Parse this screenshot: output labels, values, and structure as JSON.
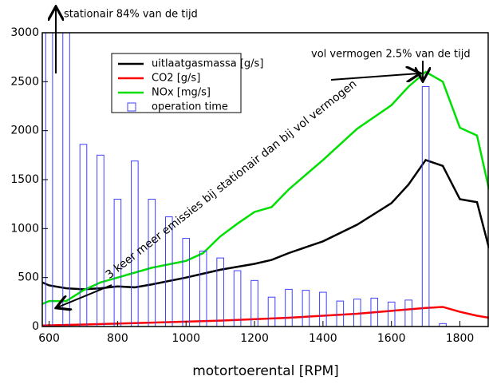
{
  "chart_data": {
    "type": "line",
    "xlabel": "motortoerental [RPM]",
    "xlim": [
      580,
      1885
    ],
    "ylim": [
      0,
      3000
    ],
    "xticks": [
      600,
      800,
      1000,
      1200,
      1400,
      1600,
      1800
    ],
    "yticks": [
      0,
      500,
      1000,
      1500,
      2000,
      2500,
      3000
    ],
    "legend": "upper left",
    "series": [
      {
        "name": "uitlaatgasmassa [g/s]",
        "type": "line",
        "color": "#000000",
        "x": [
          580,
          600,
          650,
          700,
          750,
          800,
          850,
          900,
          1000,
          1100,
          1200,
          1250,
          1300,
          1400,
          1500,
          1600,
          1650,
          1700,
          1750,
          1800,
          1850,
          1885
        ],
        "values": [
          450,
          420,
          390,
          380,
          390,
          410,
          400,
          430,
          500,
          580,
          640,
          680,
          750,
          870,
          1040,
          1260,
          1450,
          1700,
          1640,
          1300,
          1270,
          800
        ]
      },
      {
        "name": "CO2 [g/s]",
        "type": "line",
        "color": "#ff0000",
        "x": [
          580,
          700,
          900,
          1100,
          1300,
          1500,
          1600,
          1700,
          1750,
          1800,
          1850,
          1885
        ],
        "values": [
          10,
          20,
          40,
          60,
          90,
          130,
          160,
          190,
          200,
          150,
          110,
          90
        ]
      },
      {
        "name": "NOx [mg/s]",
        "type": "line",
        "color": "#00e000",
        "x": [
          580,
          600,
          650,
          700,
          750,
          800,
          900,
          1000,
          1050,
          1100,
          1150,
          1200,
          1250,
          1300,
          1400,
          1500,
          1600,
          1650,
          1700,
          1750,
          1800,
          1850,
          1885
        ],
        "values": [
          230,
          260,
          260,
          370,
          450,
          500,
          600,
          670,
          750,
          920,
          1050,
          1170,
          1220,
          1400,
          1700,
          2020,
          2260,
          2450,
          2600,
          2500,
          2030,
          1950,
          1400
        ]
      },
      {
        "name": "operation time",
        "type": "bar",
        "color": "#4040ff",
        "x": [
          600,
          650,
          700,
          750,
          800,
          850,
          900,
          950,
          1000,
          1050,
          1100,
          1150,
          1200,
          1250,
          1300,
          1350,
          1400,
          1450,
          1500,
          1550,
          1600,
          1650,
          1700,
          1750
        ],
        "values": [
          3000,
          3000,
          1860,
          1750,
          1300,
          1690,
          1300,
          1120,
          900,
          770,
          700,
          570,
          470,
          300,
          380,
          370,
          350,
          260,
          280,
          290,
          250,
          270,
          2450,
          30
        ]
      }
    ],
    "annotations": [
      "stationair 84% van de tijd",
      "vol vermogen 2.5% van de tijd",
      "3 keer meer emissies bij stationair dan bij vol vermogen"
    ]
  }
}
